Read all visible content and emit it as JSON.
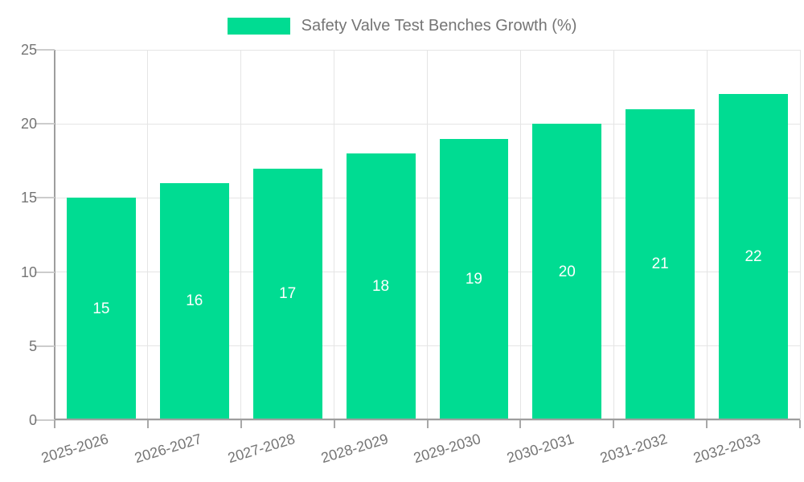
{
  "chart_data": {
    "type": "bar",
    "title": "",
    "xlabel": "",
    "ylabel": "",
    "legend": {
      "label": "Safety Valve Test Benches Growth (%)",
      "position": "top-center"
    },
    "categories": [
      "2025-2026",
      "2026-2027",
      "2027-2028",
      "2028-2029",
      "2029-2030",
      "2030-2031",
      "2031-2032",
      "2032-2033"
    ],
    "series": [
      {
        "name": "Safety Valve Test Benches Growth (%)",
        "values": [
          15,
          16,
          17,
          18,
          19,
          20,
          21,
          22
        ]
      }
    ],
    "yticks": [
      0,
      5,
      10,
      15,
      20,
      25
    ],
    "ylim": [
      0,
      25
    ],
    "grid": {
      "horizontal": true,
      "vertical": true
    },
    "bar_value_labels_position": "center",
    "colors": {
      "bar": "#00DC92",
      "bar_label": "#ffffff",
      "axis": "#9e9e9e",
      "grid": "#e5e5e5",
      "tick_y": "#cccccc",
      "tick_x": "#a8a8a8",
      "text": "#757575",
      "background": "#ffffff"
    }
  }
}
